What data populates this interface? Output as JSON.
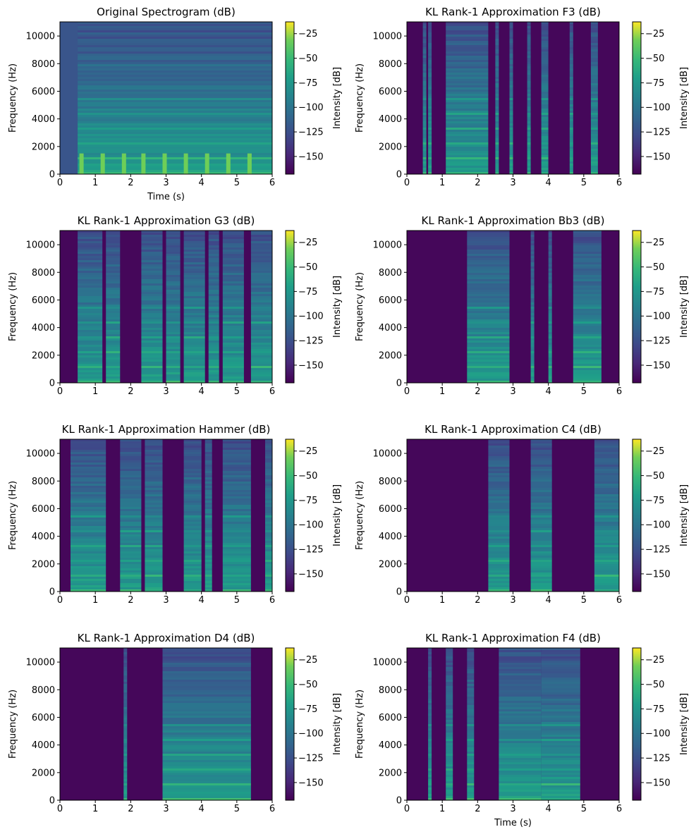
{
  "chart_data": [
    {
      "type": "heatmap",
      "title": "Original Spectrogram (dB)",
      "xlabel": "Time (s)",
      "ylabel": "Frequency (Hz)",
      "colorbar_label": "Intensity [dB]",
      "colormap": "viridis",
      "x_ticks": [
        0,
        1,
        2,
        3,
        4,
        5,
        6
      ],
      "y_ticks": [
        0,
        2000,
        4000,
        6000,
        8000,
        10000
      ],
      "xlim": [
        0,
        6
      ],
      "ylim": [
        0,
        11025
      ],
      "colorbar_ticks": [
        -25,
        -50,
        -75,
        -100,
        -125,
        -150
      ],
      "clim": [
        -168,
        -13
      ],
      "active_segments": [
        [
          0.5,
          6.0
        ]
      ],
      "note_onsets": [
        0.55,
        1.15,
        1.75,
        2.3,
        2.9,
        3.5,
        4.1,
        4.7,
        5.3
      ]
    },
    {
      "type": "heatmap",
      "title": "KL Rank-1 Approximation F3 (dB)",
      "xlabel": "",
      "ylabel": "Frequency (Hz)",
      "colorbar_label": "Intensity [dB]",
      "colormap": "viridis",
      "x_ticks": [
        0,
        1,
        2,
        3,
        4,
        5,
        6
      ],
      "y_ticks": [
        0,
        2000,
        4000,
        6000,
        8000,
        10000
      ],
      "xlim": [
        0,
        6
      ],
      "ylim": [
        0,
        11025
      ],
      "colorbar_ticks": [
        -25,
        -50,
        -75,
        -100,
        -125,
        -150
      ],
      "clim": [
        -168,
        -13
      ],
      "active_segments": [
        [
          0.45,
          0.55
        ],
        [
          0.6,
          0.7
        ],
        [
          1.1,
          2.3
        ],
        [
          2.5,
          2.6
        ],
        [
          2.9,
          3.0
        ],
        [
          3.4,
          3.5
        ],
        [
          3.8,
          4.0
        ],
        [
          4.6,
          4.7
        ],
        [
          5.2,
          5.4
        ]
      ]
    },
    {
      "type": "heatmap",
      "title": "KL Rank-1 Approximation G3 (dB)",
      "xlabel": "",
      "ylabel": "Frequency (Hz)",
      "colorbar_label": "Intensity [dB]",
      "colormap": "viridis",
      "x_ticks": [
        0,
        1,
        2,
        3,
        4,
        5,
        6
      ],
      "y_ticks": [
        0,
        2000,
        4000,
        6000,
        8000,
        10000
      ],
      "xlim": [
        0,
        6
      ],
      "ylim": [
        0,
        11025
      ],
      "colorbar_ticks": [
        -25,
        -50,
        -75,
        -100,
        -125,
        -150
      ],
      "clim": [
        -168,
        -13
      ],
      "active_segments": [
        [
          0.5,
          1.2
        ],
        [
          1.3,
          1.7
        ],
        [
          2.3,
          2.9
        ],
        [
          3.0,
          3.4
        ],
        [
          3.5,
          4.1
        ],
        [
          4.2,
          4.5
        ],
        [
          4.6,
          5.2
        ],
        [
          5.4,
          6.0
        ]
      ]
    },
    {
      "type": "heatmap",
      "title": "KL Rank-1 Approximation Bb3 (dB)",
      "xlabel": "",
      "ylabel": "Frequency (Hz)",
      "colorbar_label": "Intensity [dB]",
      "colormap": "viridis",
      "x_ticks": [
        0,
        1,
        2,
        3,
        4,
        5,
        6
      ],
      "y_ticks": [
        0,
        2000,
        4000,
        6000,
        8000,
        10000
      ],
      "xlim": [
        0,
        6
      ],
      "ylim": [
        0,
        11025
      ],
      "colorbar_ticks": [
        -25,
        -50,
        -75,
        -100,
        -125,
        -150
      ],
      "clim": [
        -168,
        -13
      ],
      "active_segments": [
        [
          1.7,
          2.9
        ],
        [
          3.5,
          3.6
        ],
        [
          4.0,
          4.1
        ],
        [
          4.7,
          5.5
        ]
      ]
    },
    {
      "type": "heatmap",
      "title": "KL Rank-1 Approximation Hammer (dB)",
      "xlabel": "",
      "ylabel": "Frequency (Hz)",
      "colorbar_label": "Intensity [dB]",
      "colormap": "viridis",
      "x_ticks": [
        0,
        1,
        2,
        3,
        4,
        5,
        6
      ],
      "y_ticks": [
        0,
        2000,
        4000,
        6000,
        8000,
        10000
      ],
      "xlim": [
        0,
        6
      ],
      "ylim": [
        0,
        11025
      ],
      "colorbar_ticks": [
        -25,
        -50,
        -75,
        -100,
        -125,
        -150
      ],
      "clim": [
        -168,
        -13
      ],
      "active_segments": [
        [
          0.3,
          1.3
        ],
        [
          1.7,
          2.3
        ],
        [
          2.4,
          2.9
        ],
        [
          3.5,
          4.0
        ],
        [
          4.1,
          4.3
        ],
        [
          4.6,
          5.4
        ],
        [
          5.8,
          6.0
        ]
      ]
    },
    {
      "type": "heatmap",
      "title": "KL Rank-1 Approximation C4 (dB)",
      "xlabel": "",
      "ylabel": "Frequency (Hz)",
      "colorbar_label": "Intensity [dB]",
      "colormap": "viridis",
      "x_ticks": [
        0,
        1,
        2,
        3,
        4,
        5,
        6
      ],
      "y_ticks": [
        0,
        2000,
        4000,
        6000,
        8000,
        10000
      ],
      "xlim": [
        0,
        6
      ],
      "ylim": [
        0,
        11025
      ],
      "colorbar_ticks": [
        -25,
        -50,
        -75,
        -100,
        -125,
        -150
      ],
      "clim": [
        -168,
        -13
      ],
      "active_segments": [
        [
          2.3,
          2.9
        ],
        [
          3.5,
          4.1
        ],
        [
          5.3,
          6.0
        ]
      ]
    },
    {
      "type": "heatmap",
      "title": "KL Rank-1 Approximation D4 (dB)",
      "xlabel": "",
      "ylabel": "Frequency (Hz)",
      "colorbar_label": "Intensity [dB]",
      "colormap": "viridis",
      "x_ticks": [
        0,
        1,
        2,
        3,
        4,
        5,
        6
      ],
      "y_ticks": [
        0,
        2000,
        4000,
        6000,
        8000,
        10000
      ],
      "xlim": [
        0,
        6
      ],
      "ylim": [
        0,
        11025
      ],
      "colorbar_ticks": [
        -25,
        -50,
        -75,
        -100,
        -125,
        -150
      ],
      "clim": [
        -168,
        -13
      ],
      "active_segments": [
        [
          1.8,
          1.9
        ],
        [
          2.9,
          5.4
        ]
      ]
    },
    {
      "type": "heatmap",
      "title": "KL Rank-1 Approximation F4 (dB)",
      "xlabel": "Time (s)",
      "ylabel": "Frequency (Hz)",
      "colorbar_label": "Intensity [dB]",
      "colormap": "viridis",
      "x_ticks": [
        0,
        1,
        2,
        3,
        4,
        5,
        6
      ],
      "y_ticks": [
        0,
        2000,
        4000,
        6000,
        8000,
        10000
      ],
      "xlim": [
        0,
        6
      ],
      "ylim": [
        0,
        11025
      ],
      "colorbar_ticks": [
        -25,
        -50,
        -75,
        -100,
        -125,
        -150
      ],
      "clim": [
        -168,
        -13
      ],
      "active_segments": [
        [
          0.6,
          0.7
        ],
        [
          1.1,
          1.3
        ],
        [
          1.7,
          1.9
        ],
        [
          2.6,
          3.8
        ],
        [
          3.8,
          4.9
        ]
      ]
    }
  ]
}
